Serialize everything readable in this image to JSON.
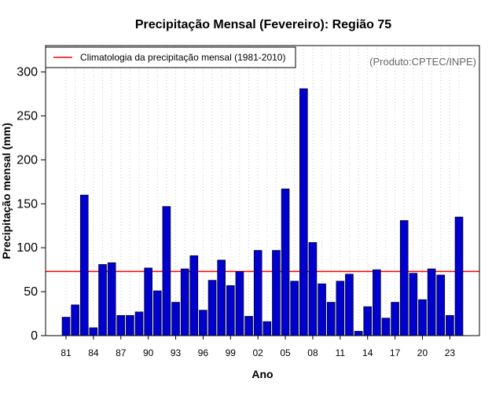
{
  "chart_data": {
    "type": "bar",
    "title": "Precipitação Mensal (Fevereiro): Região 75",
    "xlabel": "Ano",
    "ylabel": "Precipitação mensal (mm)",
    "source": "(Produto:CPTEC/INPE)",
    "legend": {
      "label": "Climatologia da precipitação mensal (1981-2010)",
      "position": "top-left",
      "color": "#ff0000"
    },
    "climatology_value": 73,
    "ylim": [
      0,
      330
    ],
    "yticks": [
      0,
      50,
      100,
      150,
      200,
      250,
      300
    ],
    "grid": "vertical-dotted",
    "bar_color": "#0000cc",
    "line_color": "#ff0000",
    "categories": [
      "81",
      "82",
      "83",
      "84",
      "85",
      "86",
      "87",
      "88",
      "89",
      "90",
      "91",
      "92",
      "93",
      "94",
      "95",
      "96",
      "97",
      "98",
      "99",
      "00",
      "01",
      "02",
      "03",
      "04",
      "05",
      "06",
      "07",
      "08",
      "09",
      "10",
      "11",
      "12",
      "13",
      "14",
      "15",
      "16",
      "17",
      "18",
      "19",
      "20",
      "21",
      "22",
      "23",
      "24"
    ],
    "values": [
      21,
      35,
      160,
      9,
      81,
      83,
      23,
      23,
      27,
      77,
      51,
      147,
      38,
      76,
      91,
      29,
      63,
      86,
      57,
      73,
      22,
      97,
      16,
      97,
      167,
      62,
      281,
      106,
      59,
      38,
      62,
      70,
      5,
      33,
      75,
      20,
      38,
      131,
      71,
      41,
      76,
      69,
      23,
      135
    ],
    "xtick_labels": [
      "81",
      "84",
      "87",
      "90",
      "93",
      "96",
      "99",
      "02",
      "05",
      "08",
      "11",
      "14",
      "17",
      "20",
      "23"
    ],
    "xtick_indices": [
      0,
      3,
      6,
      9,
      12,
      15,
      18,
      21,
      24,
      27,
      30,
      33,
      36,
      39,
      42
    ]
  }
}
